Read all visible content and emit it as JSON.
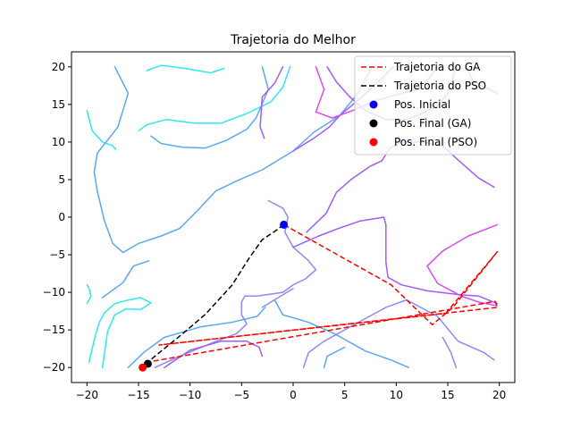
{
  "chart_data": {
    "type": "line",
    "title": "Trajetoria do Melhor",
    "xlabel": "",
    "ylabel": "",
    "xlim": [
      -21.5,
      21.5
    ],
    "ylim": [
      -22,
      22
    ],
    "x_ticks": [
      -20,
      -15,
      -10,
      -5,
      0,
      5,
      10,
      15,
      20
    ],
    "y_ticks": [
      -20,
      -15,
      -10,
      -5,
      0,
      5,
      10,
      15,
      20
    ],
    "x_tick_labels": [
      "−20",
      "−15",
      "−10",
      "−5",
      "0",
      "5",
      "10",
      "15",
      "20"
    ],
    "y_tick_labels": [
      "−20",
      "−15",
      "−10",
      "−5",
      "0",
      "5",
      "10",
      "15",
      "20"
    ],
    "grid": false,
    "legend_position": "top-right",
    "background_contours": [
      {
        "color": "#2ee8f6",
        "points": [
          [
            -19.8,
            -19.3
          ],
          [
            -19.2,
            -15.8
          ],
          [
            -18.8,
            -14
          ],
          [
            -18.3,
            -12.7
          ],
          [
            -17.3,
            -11.5
          ],
          [
            -16.2,
            -11.1
          ],
          [
            -14.8,
            -10.7
          ],
          [
            -13.8,
            -11.4
          ],
          [
            -14.8,
            -12.3
          ],
          [
            -16.2,
            -12.2
          ],
          [
            -17.3,
            -13
          ],
          [
            -18,
            -15.2
          ],
          [
            -18.5,
            -20
          ]
        ]
      },
      {
        "color": "#2ee8f6",
        "points": [
          [
            -20,
            -11.5
          ],
          [
            -19.6,
            -10.5
          ],
          [
            -19.8,
            -9.5
          ],
          [
            -20,
            -9
          ]
        ]
      },
      {
        "color": "#2ee8f6",
        "points": [
          [
            -20,
            14.2
          ],
          [
            -19.5,
            11.5
          ],
          [
            -18.5,
            10
          ],
          [
            -17.5,
            9.5
          ],
          [
            -17.2,
            9
          ]
        ]
      },
      {
        "color": "#2ee8f6",
        "points": [
          [
            -15,
            11.5
          ],
          [
            -14.2,
            12.3
          ],
          [
            -12.3,
            13
          ],
          [
            -9.5,
            12.5
          ],
          [
            -7,
            12.5
          ],
          [
            -4.5,
            13.8
          ],
          [
            -2.2,
            15.3
          ],
          [
            -1,
            17.3
          ],
          [
            -0.3,
            20
          ]
        ]
      },
      {
        "color": "#2ee8f6",
        "points": [
          [
            -14.2,
            19.5
          ],
          [
            -12.8,
            20.2
          ],
          [
            -10.5,
            19.8
          ],
          [
            -8,
            19.2
          ],
          [
            -6.7,
            19.8
          ]
        ]
      },
      {
        "color": "#5aa8f2",
        "points": [
          [
            -17.3,
            20
          ],
          [
            -16,
            16.5
          ],
          [
            -17,
            12
          ],
          [
            -19,
            8.5
          ],
          [
            -19.3,
            6
          ],
          [
            -19,
            3.5
          ],
          [
            -18.3,
            -0.5
          ],
          [
            -17.5,
            -3.5
          ],
          [
            -16.5,
            -4.7
          ],
          [
            -15,
            -3.5
          ],
          [
            -12.8,
            -2.5
          ],
          [
            -11,
            -1.5
          ],
          [
            -9.2,
            1
          ],
          [
            -7.5,
            3.5
          ],
          [
            -5.5,
            4.8
          ],
          [
            -3,
            6.3
          ],
          [
            0,
            8.8
          ],
          [
            2,
            11.3
          ],
          [
            4.5,
            13.5
          ],
          [
            6,
            16
          ],
          [
            7.7,
            20
          ]
        ]
      },
      {
        "color": "#5aa8f2",
        "points": [
          [
            -13.8,
            10.8
          ],
          [
            -12.8,
            9.8
          ],
          [
            -10.7,
            9.3
          ],
          [
            -8.5,
            9.2
          ],
          [
            -6.5,
            10.2
          ],
          [
            -4.5,
            11.7
          ],
          [
            -3.6,
            13.2
          ],
          [
            -2.4,
            17
          ],
          [
            -3,
            20
          ]
        ]
      },
      {
        "color": "#5aa8f2",
        "points": [
          [
            -18.5,
            -10.7
          ],
          [
            -16.5,
            -8.7
          ],
          [
            -15.5,
            -6.5
          ],
          [
            -14,
            -5.8
          ]
        ]
      },
      {
        "color": "#5aa8f2",
        "points": [
          [
            -16,
            -20
          ],
          [
            -14.5,
            -18
          ],
          [
            -12.5,
            -16
          ],
          [
            -9,
            -14.6
          ],
          [
            -6,
            -14
          ],
          [
            -3.5,
            -13.2
          ],
          [
            -2.7,
            -12
          ]
        ]
      },
      {
        "color": "#5aa8f2",
        "points": [
          [
            -1.8,
            -11
          ],
          [
            -1,
            -13
          ],
          [
            0.3,
            -13.5
          ],
          [
            1.5,
            -14
          ],
          [
            4,
            -15.5
          ],
          [
            7,
            -17.8
          ],
          [
            9.5,
            -19
          ],
          [
            11.2,
            -20
          ]
        ]
      },
      {
        "color": "#5aa8f2",
        "points": [
          [
            3,
            -20
          ],
          [
            3.3,
            -18.5
          ],
          [
            5,
            -17.3
          ]
        ]
      },
      {
        "color": "#8a8af8",
        "points": [
          [
            -2.4,
            2.2
          ],
          [
            -1,
            1.2
          ],
          [
            -0.5,
            0
          ],
          [
            -0.8,
            -2
          ],
          [
            0,
            -4
          ],
          [
            1.5,
            -5.8
          ],
          [
            2.2,
            -7
          ],
          [
            1.2,
            -8.2
          ],
          [
            0,
            -9
          ],
          [
            -1,
            -10
          ],
          [
            -3.5,
            -10.5
          ],
          [
            -4.7,
            -10.5
          ],
          [
            -5,
            -11.3
          ],
          [
            -5,
            -13
          ],
          [
            -4.5,
            -14.2
          ],
          [
            -5.5,
            -15.5
          ],
          [
            -8,
            -16.8
          ],
          [
            -11,
            -18.5
          ],
          [
            -13.4,
            -20
          ]
        ]
      },
      {
        "color": "#8a8af8",
        "points": [
          [
            -3,
            -12
          ],
          [
            -1.8,
            -11
          ],
          [
            0,
            -9.5
          ]
        ]
      },
      {
        "color": "#8a8af8",
        "points": [
          [
            1,
            -20
          ],
          [
            1.5,
            -18
          ],
          [
            3,
            -16.5
          ],
          [
            5,
            -15
          ],
          [
            9,
            -12
          ],
          [
            11,
            -11
          ],
          [
            14,
            -13.2
          ],
          [
            16,
            -16.5
          ],
          [
            18.5,
            -18
          ],
          [
            19.5,
            -19
          ]
        ]
      },
      {
        "color": "#8a8af8",
        "points": [
          [
            15.8,
            -20
          ],
          [
            15.3,
            -18
          ],
          [
            14.5,
            -16
          ]
        ]
      },
      {
        "color": "#a35af8",
        "points": [
          [
            -2.8,
            10.5
          ],
          [
            -3.2,
            12
          ],
          [
            -3,
            16
          ],
          [
            -1.8,
            17.8
          ],
          [
            -1,
            20
          ]
        ]
      },
      {
        "color": "#a35af8",
        "points": [
          [
            0,
            8.8
          ],
          [
            2,
            10.5
          ],
          [
            3.5,
            12
          ],
          [
            4.5,
            13.5
          ],
          [
            6.5,
            15.8
          ],
          [
            7.5,
            17
          ],
          [
            9.7,
            20
          ]
        ]
      },
      {
        "color": "#a35af8",
        "points": [
          [
            1.3,
            -2
          ],
          [
            3.2,
            0.5
          ],
          [
            4.2,
            3.3
          ],
          [
            5.6,
            5
          ],
          [
            7.5,
            6.8
          ],
          [
            8.6,
            7.5
          ],
          [
            9.4,
            9.2
          ],
          [
            10.5,
            10
          ],
          [
            12.6,
            10
          ],
          [
            14.5,
            9.5
          ],
          [
            16,
            7.6
          ],
          [
            18,
            5.2
          ],
          [
            19.5,
            4
          ]
        ]
      },
      {
        "color": "#a35af8",
        "points": [
          [
            0,
            -4
          ],
          [
            2.5,
            -2.5
          ],
          [
            4.4,
            -1.5
          ],
          [
            6.5,
            -0.5
          ],
          [
            8.8,
            0
          ],
          [
            9,
            -1
          ],
          [
            9,
            -6
          ],
          [
            9.2,
            -8
          ],
          [
            10.5,
            -9
          ],
          [
            13,
            -9.8
          ],
          [
            16,
            -10.3
          ],
          [
            18,
            -10.5
          ],
          [
            19.8,
            -11.5
          ]
        ]
      },
      {
        "color": "#a35af8",
        "points": [
          [
            -12.5,
            -20
          ],
          [
            -10,
            -17.7
          ],
          [
            -7,
            -16.5
          ],
          [
            -4.5,
            -16.5
          ],
          [
            -3.3,
            -17.3
          ],
          [
            -3,
            -18.5
          ]
        ]
      },
      {
        "color": "#a35af8",
        "points": [
          [
            3.3,
            20
          ],
          [
            4.2,
            18
          ],
          [
            5.5,
            16
          ],
          [
            7,
            14.2
          ],
          [
            9,
            13
          ],
          [
            11,
            13
          ],
          [
            12.5,
            13.8
          ],
          [
            14,
            14.8
          ],
          [
            15,
            16.5
          ],
          [
            15.5,
            18.5
          ],
          [
            15.8,
            20
          ]
        ]
      },
      {
        "color": "#d84cf6",
        "points": [
          [
            2.2,
            20
          ],
          [
            3,
            17
          ],
          [
            2.2,
            14
          ],
          [
            3.8,
            13.2
          ],
          [
            5.8,
            14.2
          ],
          [
            8,
            15.5
          ],
          [
            10.5,
            16.5
          ],
          [
            12.2,
            17
          ],
          [
            13.2,
            18.5
          ],
          [
            14,
            20
          ]
        ]
      },
      {
        "color": "#d84cf6",
        "points": [
          [
            19.8,
            -1
          ],
          [
            17,
            -2.5
          ],
          [
            14.5,
            -4.5
          ],
          [
            13,
            -6.5
          ],
          [
            14,
            -8.8
          ],
          [
            16.3,
            -10.5
          ],
          [
            18,
            -11.3
          ],
          [
            19.8,
            -11.8
          ]
        ]
      },
      {
        "color": "#d84cf6",
        "points": [
          [
            16.8,
            20
          ],
          [
            17.5,
            18
          ],
          [
            19.8,
            16.5
          ]
        ]
      }
    ],
    "series": [
      {
        "name": "Trajetoria do GA",
        "color": "#ff0000",
        "dash": "dashed",
        "x": [
          -0.9,
          9.5,
          13.5,
          15.5,
          19.8,
          14.8,
          -13,
          19.8,
          19.6,
          -14.2,
          -14.6
        ],
        "y": [
          -1,
          -9,
          -14.3,
          -12,
          -4.6,
          -12.8,
          -17,
          -12,
          -11.2,
          -19.3,
          -20
        ]
      },
      {
        "name": "Trajetoria do PSO",
        "color": "#000000",
        "dash": "dashed",
        "x": [
          -0.9,
          -1.9,
          -3,
          -4.3,
          -5.9,
          -8.5,
          -10.8,
          -13.5,
          -14.2,
          -14.6
        ],
        "y": [
          -1,
          -2,
          -3,
          -5.5,
          -9,
          -12.9,
          -15.6,
          -18.6,
          -19.4,
          -20
        ]
      }
    ],
    "markers": [
      {
        "name": "Pos. Inicial",
        "color": "#0000ff",
        "x": -0.9,
        "y": -1
      },
      {
        "name": "Pos. Final (GA)",
        "color": "#000000",
        "x": -14.1,
        "y": -19.5
      },
      {
        "name": "Pos. Final (PSO)",
        "color": "#ff0000",
        "x": -14.6,
        "y": -20
      }
    ]
  }
}
